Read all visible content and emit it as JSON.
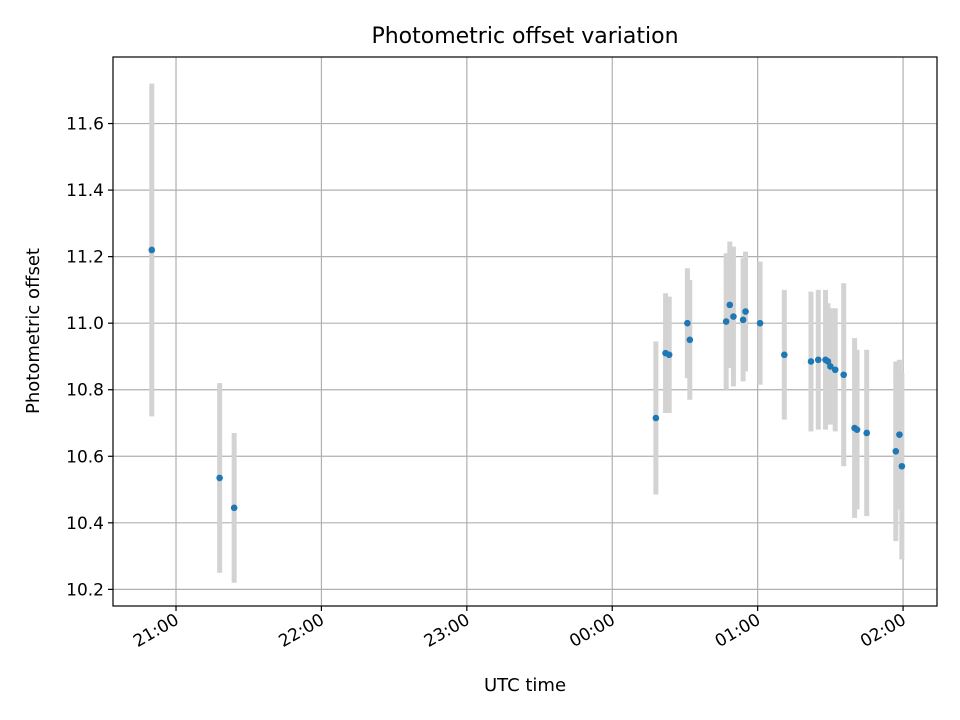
{
  "chart_data": {
    "type": "scatter",
    "title": "Photometric offset variation",
    "xlabel": "UTC time",
    "ylabel": "Photometric offset",
    "xlim": [
      "20:34",
      "02:14"
    ],
    "ylim": [
      10.15,
      11.8
    ],
    "x_ticks": [
      "21:00",
      "22:00",
      "23:00",
      "00:00",
      "01:00",
      "02:00"
    ],
    "y_ticks": [
      10.2,
      10.4,
      10.6,
      10.8,
      11.0,
      11.2,
      11.4,
      11.6
    ],
    "grid": true,
    "legend": "none",
    "error_bar_color": "#d3d3d3",
    "marker_color": "#1f77b4",
    "points": [
      {
        "t": "20:50",
        "y": 11.22,
        "err": 0.5
      },
      {
        "t": "21:18",
        "y": 10.535,
        "err": 0.285
      },
      {
        "t": "21:24",
        "y": 10.445,
        "err": 0.225
      },
      {
        "t": "00:18",
        "y": 10.715,
        "err": 0.23
      },
      {
        "t": "00:22",
        "y": 10.91,
        "err": 0.18
      },
      {
        "t": "00:23.5",
        "y": 10.905,
        "err": 0.175
      },
      {
        "t": "00:31",
        "y": 11.0,
        "err": 0.165
      },
      {
        "t": "00:32",
        "y": 10.95,
        "err": 0.18
      },
      {
        "t": "00:47",
        "y": 11.005,
        "err": 0.205
      },
      {
        "t": "00:48.5",
        "y": 11.055,
        "err": 0.19
      },
      {
        "t": "00:50",
        "y": 11.02,
        "err": 0.21
      },
      {
        "t": "00:54",
        "y": 11.01,
        "err": 0.185
      },
      {
        "t": "00:55",
        "y": 11.035,
        "err": 0.18
      },
      {
        "t": "01:01",
        "y": 11.0,
        "err": 0.185
      },
      {
        "t": "01:11",
        "y": 10.905,
        "err": 0.195
      },
      {
        "t": "01:22",
        "y": 10.885,
        "err": 0.21
      },
      {
        "t": "01:25",
        "y": 10.89,
        "err": 0.21
      },
      {
        "t": "01:28",
        "y": 10.89,
        "err": 0.21
      },
      {
        "t": "01:29",
        "y": 10.885,
        "err": 0.175
      },
      {
        "t": "01:30",
        "y": 10.87,
        "err": 0.175
      },
      {
        "t": "01:32",
        "y": 10.86,
        "err": 0.185
      },
      {
        "t": "01:35.5",
        "y": 10.845,
        "err": 0.275
      },
      {
        "t": "01:40",
        "y": 10.685,
        "err": 0.27
      },
      {
        "t": "01:41",
        "y": 10.68,
        "err": 0.24
      },
      {
        "t": "01:45",
        "y": 10.67,
        "err": 0.25
      },
      {
        "t": "01:57",
        "y": 10.615,
        "err": 0.27
      },
      {
        "t": "01:58.5",
        "y": 10.665,
        "err": 0.225
      },
      {
        "t": "01:59.5",
        "y": 10.57,
        "err": 0.28
      }
    ]
  }
}
